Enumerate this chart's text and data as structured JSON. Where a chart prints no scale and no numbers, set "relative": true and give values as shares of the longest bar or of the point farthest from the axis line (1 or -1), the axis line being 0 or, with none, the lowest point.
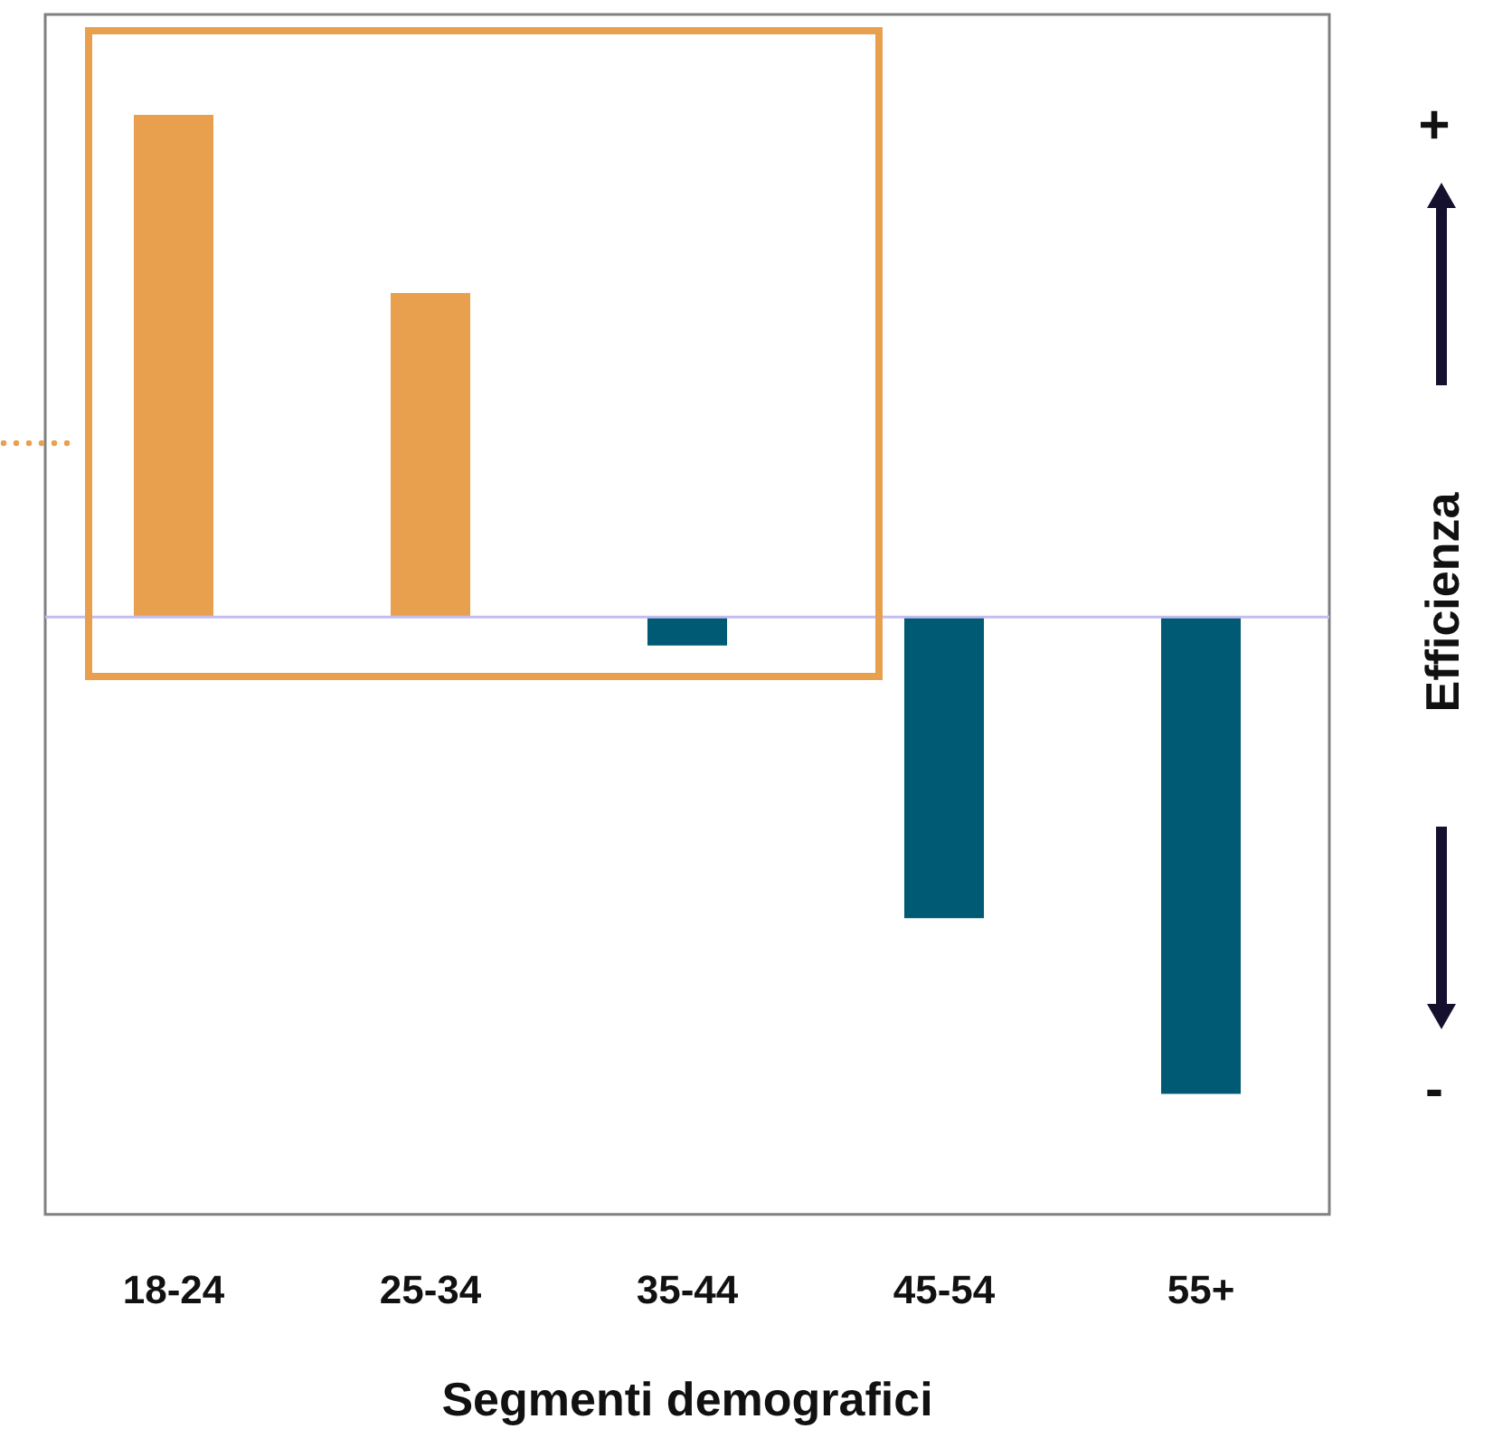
{
  "chart_data": {
    "type": "bar",
    "relative": true,
    "xlabel": "Segmenti demografici",
    "ylabel": "Efficienza",
    "categories": [
      "18-24",
      "25-34",
      "35-44",
      "45-54",
      "55+"
    ],
    "values": [
      1,
      0.645,
      -0.057,
      -0.6,
      -0.95
    ],
    "colors": [
      "#e8a04f",
      "#e8a04f",
      "#005a73",
      "#005a73",
      "#005a73"
    ],
    "annotations": [
      "+",
      "-"
    ],
    "ref_lines": [
      {
        "axis": "y",
        "value": 0,
        "color": "#c4bdf0"
      }
    ],
    "grid": false,
    "legend": false
  }
}
